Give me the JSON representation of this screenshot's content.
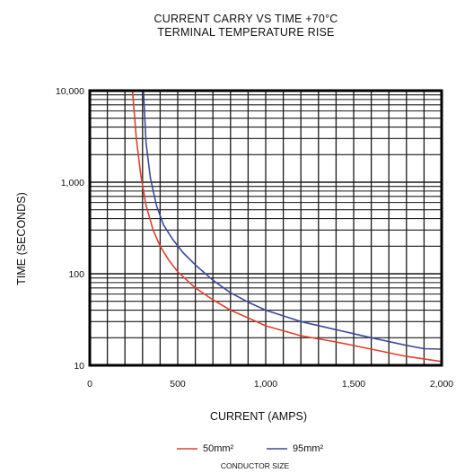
{
  "chart_data": {
    "type": "line",
    "title": "CURRENT CARRY VS TIME +70°C",
    "subtitle": "TERMINAL TEMPERATURE RISE",
    "xlabel": "CURRENT (AMPS)",
    "ylabel": "TIME (SECONDS)",
    "xlim": [
      0,
      2000
    ],
    "ylim": [
      10,
      10000
    ],
    "yscale": "log",
    "grid": true,
    "legend_position": "bottom",
    "xticks": [
      {
        "value": 0,
        "label": "0"
      },
      {
        "value": 500,
        "label": "500"
      },
      {
        "value": 1000,
        "label": "1,000"
      },
      {
        "value": 1500,
        "label": "1,500"
      },
      {
        "value": 2000,
        "label": "2,000"
      }
    ],
    "yticks": [
      {
        "value": 10,
        "label": "10"
      },
      {
        "value": 100,
        "label": "100"
      },
      {
        "value": 1000,
        "label": "1,000"
      },
      {
        "value": 10000,
        "label": "10,000"
      }
    ],
    "legend_title": "CONDUCTOR SIZE",
    "series": [
      {
        "name": "50mm²",
        "color": "#e0412b",
        "x": [
          243,
          265,
          290,
          320,
          360,
          400,
          450,
          500,
          600,
          700,
          800,
          900,
          1000,
          1200,
          1400,
          1600,
          1800,
          2000
        ],
        "y": [
          10000,
          3000,
          1200,
          560,
          300,
          200,
          140,
          105,
          70,
          52,
          40,
          33,
          27,
          21,
          18,
          15,
          12.5,
          11
        ]
      },
      {
        "name": "95mm²",
        "color": "#3b4a9c",
        "x": [
          305,
          320,
          345,
          380,
          420,
          470,
          530,
          600,
          700,
          800,
          900,
          1000,
          1200,
          1400,
          1600,
          1800,
          1900,
          2000
        ],
        "y": [
          10000,
          2700,
          1100,
          550,
          340,
          240,
          170,
          125,
          85,
          62,
          49,
          40,
          30,
          24.5,
          20,
          16.5,
          15.2,
          15
        ]
      }
    ]
  }
}
